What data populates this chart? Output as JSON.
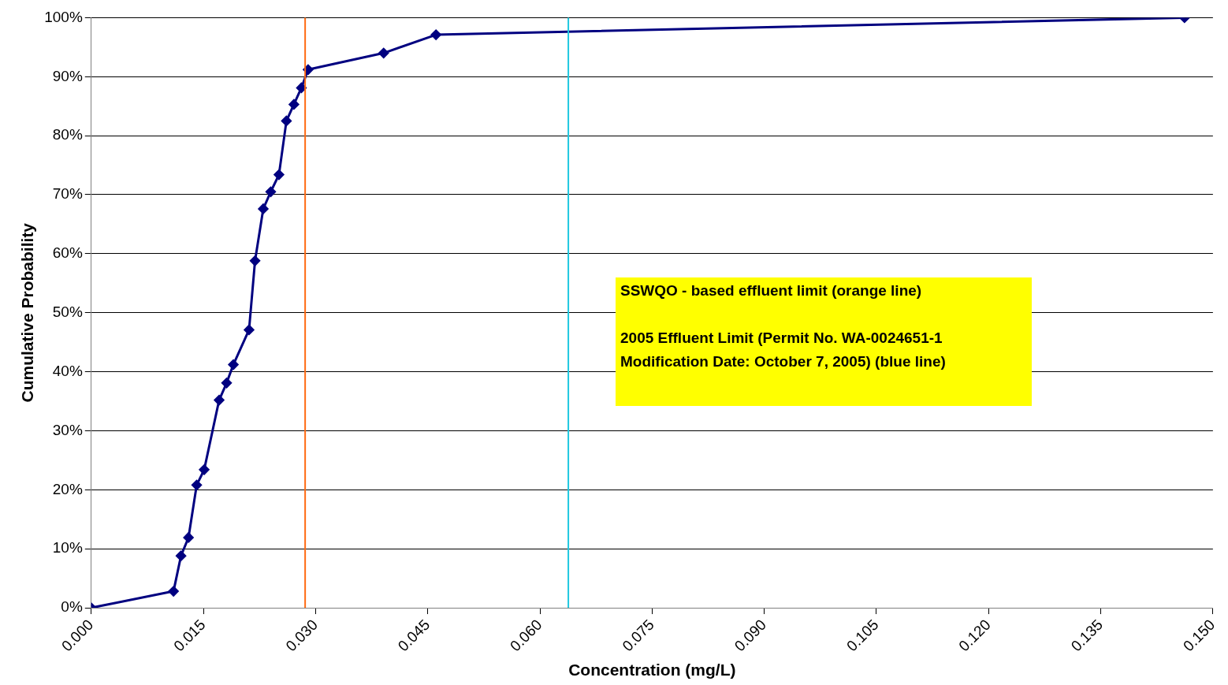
{
  "chart_data": {
    "type": "line",
    "xlabel": "Concentration (mg/L)",
    "ylabel": "Cumulative Probability",
    "x": [
      0,
      0.011,
      0.012,
      0.013,
      0.0141,
      0.0151,
      0.0171,
      0.0181,
      0.019,
      0.0211,
      0.0219,
      0.023,
      0.024,
      0.0251,
      0.0261,
      0.0271,
      0.0281,
      0.029,
      0.0391,
      0.0461,
      0.1462
    ],
    "series": [
      {
        "color": "#000080",
        "values": [
          0,
          2.8,
          8.8,
          11.9,
          20.8,
          23.4,
          35.2,
          38.1,
          41.2,
          47.1,
          58.8,
          67.6,
          70.5,
          73.4,
          82.5,
          85.3,
          88.1,
          91.2,
          94.0,
          97.1,
          100
        ]
      }
    ],
    "xlim": [
      0,
      0.15
    ],
    "xticks": [
      {
        "value": 0,
        "label": "0.000"
      },
      {
        "value": 0.015,
        "label": "0.015"
      },
      {
        "value": 0.03,
        "label": "0.030"
      },
      {
        "value": 0.045,
        "label": "0.045"
      },
      {
        "value": 0.06,
        "label": "0.060"
      },
      {
        "value": 0.075,
        "label": "0.075"
      },
      {
        "value": 0.09,
        "label": "0.090"
      },
      {
        "value": 0.105,
        "label": "0.105"
      },
      {
        "value": 0.12,
        "label": "0.120"
      },
      {
        "value": 0.135,
        "label": "0.135"
      },
      {
        "value": 0.15,
        "label": "0.150"
      }
    ],
    "ylim": [
      0,
      100
    ],
    "yticks": [
      {
        "value": 0,
        "label": "0%"
      },
      {
        "value": 10,
        "label": "10%"
      },
      {
        "value": 20,
        "label": "20%"
      },
      {
        "value": 30,
        "label": "30%"
      },
      {
        "value": 40,
        "label": "40%"
      },
      {
        "value": 50,
        "label": "50%"
      },
      {
        "value": 60,
        "label": "60%"
      },
      {
        "value": 70,
        "label": "70%"
      },
      {
        "value": 80,
        "label": "80%"
      },
      {
        "value": 90,
        "label": "90%"
      },
      {
        "value": 100,
        "label": "100%"
      }
    ],
    "ref_lines": [
      {
        "axis": "x",
        "value": 0.0286,
        "color": "#ff6a13"
      },
      {
        "axis": "x",
        "value": 0.0638,
        "color": "#1ec8e0"
      }
    ],
    "annotations": [
      "SSWQO - based effluent limit (orange line)",
      "2005 Effluent Limit (Permit No. WA-0024651-1 Modification Date: October 7, 2005) (blue line)"
    ],
    "grid": "y",
    "legend": false,
    "marker": "diamond",
    "line_style": "solid"
  }
}
